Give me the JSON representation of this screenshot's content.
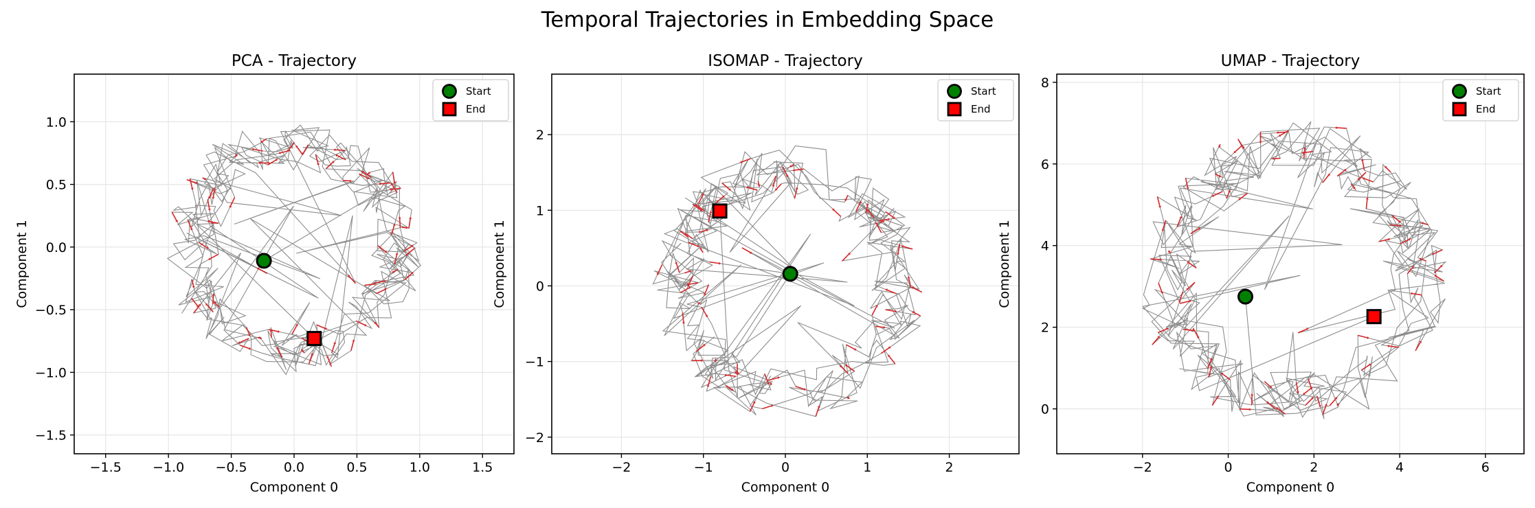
{
  "figure": {
    "suptitle": "Temporal Trajectories in Embedding Space"
  },
  "legend": {
    "start_label": "Start",
    "end_label": "End"
  },
  "colors": {
    "trajectory": "#808080",
    "arrow": "#d62728",
    "start_face": "#008000",
    "end_face": "#ff0000",
    "marker_edge": "#000000",
    "grid": "#e6e6e6"
  },
  "chart_data": [
    {
      "type": "line",
      "title": "PCA - Trajectory",
      "xlabel": "Component 0",
      "ylabel": "Component 1",
      "xlim": [
        -1.75,
        1.75
      ],
      "ylim": [
        -1.65,
        1.38
      ],
      "xticks": [
        -1.5,
        -1.0,
        -0.5,
        0.0,
        0.5,
        1.0,
        1.5
      ],
      "yticks": [
        -1.5,
        -1.0,
        -0.5,
        0.0,
        0.5,
        1.0
      ],
      "tick_decimals": 1,
      "grid": true,
      "legend_position": "top-right",
      "trajectory_shape": "noisy ring around the origin",
      "center": [
        0.0,
        0.0
      ],
      "radius": 0.82,
      "start": [
        -0.24,
        -0.11
      ],
      "end": [
        0.16,
        -0.73
      ]
    },
    {
      "type": "line",
      "title": "ISOMAP - Trajectory",
      "xlabel": "Component 0",
      "ylabel": "Component 1",
      "xlim": [
        -2.85,
        2.85
      ],
      "ylim": [
        -2.22,
        2.8
      ],
      "xticks": [
        -2,
        -1,
        0,
        1,
        2
      ],
      "yticks": [
        -2,
        -1,
        0,
        1,
        2
      ],
      "tick_decimals": 0,
      "grid": true,
      "legend_position": "top-right",
      "trajectory_shape": "noisy ring around the origin",
      "center": [
        0.05,
        0.05
      ],
      "radius": 1.35,
      "start": [
        0.06,
        0.16
      ],
      "end": [
        -0.8,
        0.99
      ]
    },
    {
      "type": "line",
      "title": "UMAP - Trajectory",
      "xlabel": "Component 0",
      "ylabel": "Component 1",
      "xlim": [
        -4.0,
        6.9
      ],
      "ylim": [
        -1.1,
        8.2
      ],
      "xticks": [
        -2,
        0,
        2,
        4,
        6
      ],
      "yticks": [
        0,
        2,
        4,
        6,
        8
      ],
      "tick_decimals": 0,
      "grid": true,
      "legend_position": "top-right",
      "trajectory_shape": "noisy ring",
      "center": [
        1.5,
        3.3
      ],
      "radius": 2.9,
      "start": [
        0.4,
        2.75
      ],
      "end": [
        3.4,
        2.26
      ]
    }
  ]
}
